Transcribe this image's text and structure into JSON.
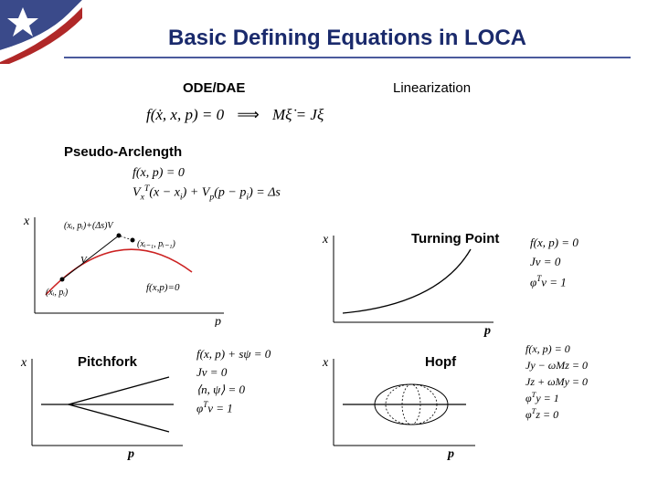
{
  "logo": {
    "star_color": "#ffffff",
    "red": "#b02828",
    "blue": "#3a4a8a"
  },
  "title": {
    "text": "Basic Defining Equations in LOCA",
    "color": "#1a2a6c",
    "fontsize": 24,
    "underline_color": "#4a5a9c"
  },
  "ode": {
    "label": "ODE/DAE",
    "eq": "f(ẋ, x, p) = 0"
  },
  "linearization": {
    "label": "Linearization",
    "eq": "Mξ̇ = Jξ",
    "arrow": "⟹"
  },
  "pseudo": {
    "label": "Pseudo-Arclength",
    "eq1": "f(x, p) = 0",
    "eq2_html": "V<sub>x</sub><sup>T</sup>(x − x<sub>i</sub>) + V<sub>p</sub>(p − p<sub>i</sub>) = Δs",
    "plot": {
      "x_axis": "p",
      "y_axis": "x",
      "curve_color": "#cc2222",
      "tangent_color": "#000000",
      "pt1": "(x_i, p_i)",
      "pt2": "(x_{i-1}, p_{i-1})",
      "pt3": "(x_i, p_i) + (Δs)V",
      "vec": "V",
      "curve_label": "f(x, p) = 0"
    }
  },
  "turning": {
    "label": "Turning Point",
    "eq1": "f(x, p) = 0",
    "eq2": "Jv = 0",
    "eq3_html": "φ<sup>T</sup>v = 1",
    "plot": {
      "x_axis": "p",
      "y_axis": "x"
    }
  },
  "pitchfork": {
    "label": "Pitchfork",
    "eq1": "f(x, p) + sψ = 0",
    "eq2": "Jv = 0",
    "eq3": "⟨n, ψ⟩ = 0",
    "eq4_html": "φ<sup>T</sup>v = 1",
    "plot": {
      "x_axis": "p",
      "y_axis": "x"
    }
  },
  "hopf": {
    "label": "Hopf",
    "eq1": "f(x, p) = 0",
    "eq2": "Jy − ωMz = 0",
    "eq3": "Jz + ωMy = 0",
    "eq4_html": "φ<sup>T</sup>y = 1",
    "eq5_html": "φ<sup>T</sup>z = 0",
    "plot": {
      "x_axis": "p",
      "y_axis": "x"
    }
  }
}
